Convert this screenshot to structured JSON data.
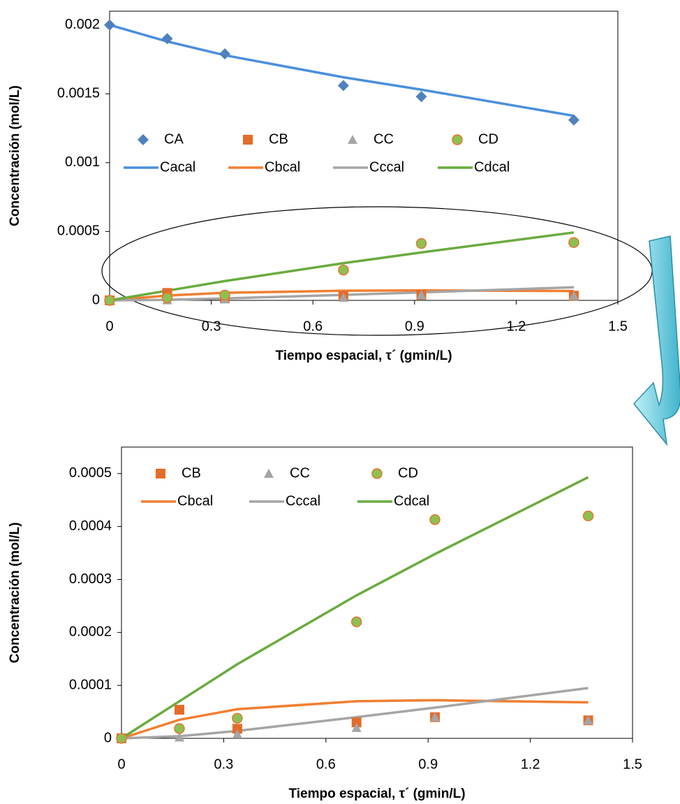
{
  "chart_data": [
    {
      "type": "scatter",
      "y_label": "Concentración (mol/L)",
      "x_label": "Tiempo espacial, τ´ (gmin/L)",
      "x": [
        0,
        0.17,
        0.34,
        0.69,
        0.92,
        1.37
      ],
      "xlim": [
        0,
        1.5
      ],
      "xticks": [
        0,
        0.3,
        0.6,
        0.9,
        1.2,
        1.5
      ],
      "ylim": [
        0,
        0.0021
      ],
      "yticks": [
        0,
        0.0005,
        0.001,
        0.0015,
        0.002
      ],
      "series": [
        {
          "name": "CA",
          "style": "marker",
          "marker": "diamond",
          "color": "#4f81bd",
          "values": [
            0.002,
            0.0019,
            0.00179,
            0.00156,
            0.00148,
            0.00131
          ]
        },
        {
          "name": "CB",
          "style": "marker",
          "marker": "square",
          "color": "#e46c2a",
          "values": [
            0,
            5.4e-05,
            1.8e-05,
            3e-05,
            4e-05,
            3.4e-05
          ]
        },
        {
          "name": "CC",
          "style": "marker",
          "marker": "triangle",
          "color": "#a5a5a5",
          "values": [
            0,
            2e-06,
            8e-06,
            2e-05,
            4e-05,
            3.4e-05
          ]
        },
        {
          "name": "CD",
          "style": "marker",
          "marker": "circle",
          "color": "#8cc152",
          "edgecolor": "#e8742f",
          "values": [
            0,
            1.85e-05,
            3.8e-05,
            0.00022,
            0.000413,
            0.00042
          ]
        },
        {
          "name": "Cacal",
          "style": "line",
          "color": "#4a8fdc",
          "values": [
            0.002,
            0.00188,
            0.00178,
            0.00162,
            0.00153,
            0.00134
          ]
        },
        {
          "name": "Cbcal",
          "style": "line",
          "color": "#f07f32",
          "values": [
            0,
            3.5e-05,
            5.5e-05,
            7e-05,
            7.2e-05,
            6.8e-05
          ]
        },
        {
          "name": "Cccal",
          "style": "line",
          "color": "#a5a5a5",
          "values": [
            0,
            4e-06,
            1.4e-05,
            4e-05,
            5.8e-05,
            9.5e-05
          ]
        },
        {
          "name": "Cdcal",
          "style": "line",
          "color": "#6aab3f",
          "values": [
            0,
            7e-05,
            0.00014,
            0.00027,
            0.000348,
            0.000493
          ]
        }
      ]
    },
    {
      "type": "scatter",
      "y_label": "Concentración (mol/L)",
      "x_label": "Tiempo espacial, τ´ (gmin/L)",
      "x": [
        0,
        0.17,
        0.34,
        0.69,
        0.92,
        1.37
      ],
      "xlim": [
        0,
        1.5
      ],
      "xticks": [
        0,
        0.3,
        0.6,
        0.9,
        1.2,
        1.5
      ],
      "ylim": [
        0,
        0.00055
      ],
      "yticks": [
        0,
        0.0001,
        0.0002,
        0.0003,
        0.0004,
        0.0005
      ],
      "series": [
        {
          "name": "CB",
          "style": "marker",
          "marker": "square",
          "color": "#e46c2a",
          "values": [
            0,
            5.4e-05,
            1.8e-05,
            3e-05,
            4e-05,
            3.4e-05
          ]
        },
        {
          "name": "CC",
          "style": "marker",
          "marker": "triangle",
          "color": "#a5a5a5",
          "values": [
            0,
            2e-06,
            8e-06,
            2e-05,
            4e-05,
            3.4e-05
          ]
        },
        {
          "name": "CD",
          "style": "marker",
          "marker": "circle",
          "color": "#8cc152",
          "edgecolor": "#e8742f",
          "values": [
            0,
            1.85e-05,
            3.8e-05,
            0.00022,
            0.000413,
            0.00042
          ]
        },
        {
          "name": "Cbcal",
          "style": "line",
          "color": "#f07f32",
          "values": [
            0,
            3.5e-05,
            5.5e-05,
            7e-05,
            7.2e-05,
            6.8e-05
          ]
        },
        {
          "name": "Cccal",
          "style": "line",
          "color": "#a5a5a5",
          "values": [
            0,
            4e-06,
            1.4e-05,
            4e-05,
            5.8e-05,
            9.5e-05
          ]
        },
        {
          "name": "Cdcal",
          "style": "line",
          "color": "#6aab3f",
          "values": [
            0,
            7e-05,
            0.00014,
            0.00027,
            0.000348,
            0.000493
          ]
        }
      ]
    }
  ]
}
